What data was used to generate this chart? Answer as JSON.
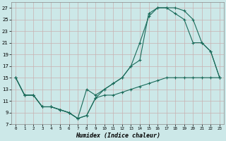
{
  "xlabel": "Humidex (Indice chaleur)",
  "bg_color": "#cce8e8",
  "grid_color": "#b0d8d8",
  "line_color": "#1a6b5a",
  "xlim": [
    -0.5,
    23.5
  ],
  "ylim": [
    7,
    28
  ],
  "yticks": [
    7,
    9,
    11,
    13,
    15,
    17,
    19,
    21,
    23,
    25,
    27
  ],
  "xticks": [
    0,
    1,
    2,
    3,
    4,
    5,
    6,
    7,
    8,
    9,
    10,
    11,
    12,
    13,
    14,
    15,
    16,
    17,
    18,
    19,
    20,
    21,
    22,
    23
  ],
  "line_upper_x": [
    0,
    1,
    2,
    3,
    4,
    5,
    6,
    7,
    8,
    9,
    10,
    11,
    12,
    13,
    14,
    15,
    16,
    17,
    18,
    19,
    20,
    21,
    22,
    23
  ],
  "line_upper_y": [
    15,
    12,
    12,
    10,
    10,
    9.5,
    9,
    8,
    13,
    12,
    13,
    14,
    15,
    17,
    21,
    25.5,
    27,
    27,
    27,
    26.5,
    25,
    21,
    19.5,
    15
  ],
  "line_mid_x": [
    0,
    1,
    2,
    3,
    4,
    5,
    6,
    7,
    8,
    9,
    10,
    11,
    12,
    13,
    14,
    15,
    16,
    17,
    18,
    19,
    20,
    21,
    22,
    23
  ],
  "line_mid_y": [
    15,
    12,
    12,
    10,
    10,
    9.5,
    9,
    8,
    8.5,
    11.5,
    13,
    14,
    15,
    17,
    18,
    26,
    27,
    27,
    26,
    25,
    21,
    21,
    19.5,
    15
  ],
  "line_lower_x": [
    0,
    1,
    2,
    3,
    4,
    5,
    6,
    7,
    8,
    9,
    10,
    11,
    12,
    13,
    14,
    15,
    16,
    17,
    18,
    19,
    20,
    21,
    22,
    23
  ],
  "line_lower_y": [
    15,
    12,
    12,
    10,
    10,
    9.5,
    9,
    8,
    8.5,
    11.5,
    12,
    12,
    12.5,
    13,
    13.5,
    14,
    14.5,
    15,
    15,
    15,
    15,
    15,
    15,
    15
  ]
}
